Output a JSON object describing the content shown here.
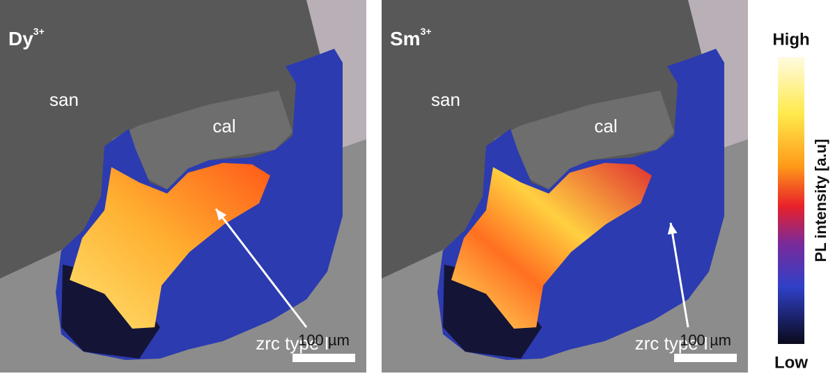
{
  "panels": [
    {
      "ion": "Dy",
      "charge": "3+",
      "host_label": "san",
      "inclusion_label": "cal",
      "zircon_label": "zrc type I",
      "scale_bar": "100 µm"
    },
    {
      "ion": "Sm",
      "charge": "3+",
      "host_label": "san",
      "inclusion_label": "cal",
      "zircon_label": "zrc type II",
      "scale_bar": "100 µm"
    }
  ],
  "colorbar": {
    "high": "High",
    "low": "Low",
    "title": "PL intensity [a.u]"
  }
}
